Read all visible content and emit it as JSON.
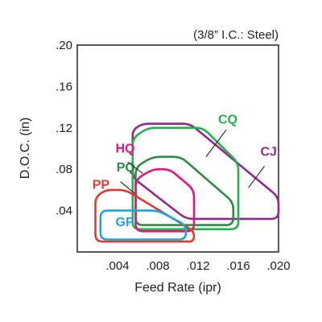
{
  "chart_data": {
    "type": "area",
    "note": "(3/8” I.C.: Steel)",
    "xlabel": "Feed Rate (ipr)",
    "ylabel": "D.O.C. (in)",
    "xlim": [
      0,
      0.02
    ],
    "ylim": [
      0,
      0.2
    ],
    "x_ticks": [
      {
        "value": 0.004,
        "label": ".004"
      },
      {
        "value": 0.008,
        "label": ".008"
      },
      {
        "value": 0.012,
        "label": ".012"
      },
      {
        "value": 0.016,
        "label": ".016"
      },
      {
        "value": 0.02,
        "label": ".020"
      }
    ],
    "y_ticks": [
      {
        "value": 0.04,
        "label": ".04"
      },
      {
        "value": 0.08,
        "label": ".08"
      },
      {
        "value": 0.12,
        "label": ".12"
      },
      {
        "value": 0.16,
        "label": ".16"
      },
      {
        "value": 0.2,
        "label": ".20"
      }
    ],
    "grid": false,
    "series": [
      {
        "name": "GP",
        "color": "#1aa7dc",
        "points": [
          [
            0.0023,
            0.04
          ],
          [
            0.008,
            0.04
          ],
          [
            0.0108,
            0.026
          ],
          [
            0.0108,
            0.012
          ],
          [
            0.0023,
            0.012
          ]
        ],
        "label_pos": [
          0.0038,
          0.025
        ],
        "leader": null
      },
      {
        "name": "PP",
        "color": "#e03c31",
        "points": [
          [
            0.0018,
            0.053
          ],
          [
            0.0028,
            0.06
          ],
          [
            0.0048,
            0.06
          ],
          [
            0.0116,
            0.02
          ],
          [
            0.0116,
            0.01
          ],
          [
            0.0018,
            0.01
          ]
        ],
        "label_pos": [
          0.0015,
          0.061
        ],
        "leader": null
      },
      {
        "name": "PQ",
        "color": "#2e8b46",
        "points": [
          [
            0.0058,
            0.082
          ],
          [
            0.0075,
            0.092
          ],
          [
            0.0103,
            0.092
          ],
          [
            0.0155,
            0.048
          ],
          [
            0.0155,
            0.026
          ],
          [
            0.0058,
            0.026
          ]
        ],
        "label_pos": [
          0.0039,
          0.078
        ],
        "leader": [
          [
            0.0043,
            0.068
          ],
          [
            0.006,
            0.054
          ]
        ]
      },
      {
        "name": "HQ",
        "color": "#e5147e",
        "points": [
          [
            0.0058,
            0.07
          ],
          [
            0.0075,
            0.08
          ],
          [
            0.0092,
            0.08
          ],
          [
            0.0116,
            0.06
          ],
          [
            0.0116,
            0.02
          ],
          [
            0.0058,
            0.02
          ]
        ],
        "label_pos": [
          0.0038,
          0.096
        ],
        "leader": [
          [
            0.005,
            0.087
          ],
          [
            0.0065,
            0.076
          ]
        ]
      },
      {
        "name": "CQ",
        "color": "#22b14c",
        "points": [
          [
            0.0055,
            0.11
          ],
          [
            0.007,
            0.12
          ],
          [
            0.0125,
            0.12
          ],
          [
            0.016,
            0.086
          ],
          [
            0.016,
            0.022
          ],
          [
            0.0055,
            0.022
          ]
        ],
        "label_pos": [
          0.014,
          0.124
        ],
        "leader": [
          [
            0.0148,
            0.118
          ],
          [
            0.0128,
            0.092
          ]
        ]
      },
      {
        "name": "CJ",
        "color": "#92278f",
        "points": [
          [
            0.0055,
            0.118
          ],
          [
            0.0065,
            0.124
          ],
          [
            0.0112,
            0.124
          ],
          [
            0.02,
            0.053
          ],
          [
            0.02,
            0.032
          ],
          [
            0.0108,
            0.032
          ],
          [
            0.0055,
            0.072
          ]
        ],
        "label_pos": [
          0.0182,
          0.093
        ],
        "leader": [
          [
            0.0186,
            0.083
          ],
          [
            0.017,
            0.062
          ]
        ]
      }
    ]
  }
}
